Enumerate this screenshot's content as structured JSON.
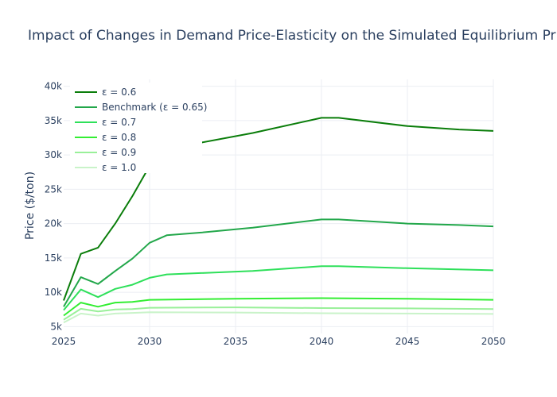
{
  "chart_data": {
    "type": "line",
    "title": "Impact of Changes in Demand Price-Elasticity on the Simulated Equilibrium Price Path",
    "xlabel": "",
    "ylabel": "Price ($/ton)",
    "xlim": [
      2025,
      2050
    ],
    "ylim": [
      4000,
      41000
    ],
    "xticks": [
      2025,
      2030,
      2035,
      2040,
      2045,
      2050
    ],
    "xtick_labels": [
      "2025",
      "2030",
      "2035",
      "2040",
      "2045",
      "2050"
    ],
    "yticks": [
      5000,
      10000,
      15000,
      20000,
      25000,
      30000,
      35000,
      40000
    ],
    "ytick_labels": [
      "5k",
      "10k",
      "15k",
      "20k",
      "25k",
      "30k",
      "35k",
      "40k"
    ],
    "grid": true,
    "legend_position": "top-left",
    "series": [
      {
        "name": "ε = 0.6",
        "color": "#0a7d0a",
        "x": [
          2025,
          2026,
          2027,
          2028,
          2029,
          2030,
          2031,
          2033,
          2036,
          2040,
          2041,
          2045,
          2048,
          2050
        ],
        "y": [
          8800,
          15600,
          16500,
          20000,
          24000,
          28400,
          30800,
          31800,
          33200,
          35400,
          35400,
          34200,
          33700,
          33500
        ]
      },
      {
        "name": "Benchmark (ε = 0.65)",
        "color": "#22a74a",
        "x": [
          2025,
          2026,
          2027,
          2028,
          2029,
          2030,
          2031,
          2033,
          2036,
          2040,
          2041,
          2045,
          2048,
          2050
        ],
        "y": [
          7900,
          12200,
          11200,
          13100,
          14900,
          17200,
          18300,
          18700,
          19400,
          20600,
          20600,
          20000,
          19800,
          19600
        ]
      },
      {
        "name": "ε = 0.7",
        "color": "#2ee05a",
        "x": [
          2025,
          2026,
          2027,
          2028,
          2029,
          2030,
          2031,
          2036,
          2040,
          2041,
          2045,
          2050
        ],
        "y": [
          7400,
          10400,
          9300,
          10500,
          11100,
          12100,
          12600,
          13100,
          13800,
          13800,
          13500,
          13200
        ]
      },
      {
        "name": "ε = 0.8",
        "color": "#33ee33",
        "x": [
          2025,
          2026,
          2027,
          2028,
          2029,
          2030,
          2035,
          2040,
          2045,
          2050
        ],
        "y": [
          6600,
          8500,
          7900,
          8500,
          8600,
          8900,
          9050,
          9150,
          9050,
          8900
        ]
      },
      {
        "name": "ε = 0.9",
        "color": "#99f099",
        "x": [
          2025,
          2026,
          2027,
          2028,
          2029,
          2030,
          2035,
          2040,
          2045,
          2050
        ],
        "y": [
          6000,
          7600,
          7200,
          7500,
          7550,
          7750,
          7800,
          7700,
          7650,
          7550
        ]
      },
      {
        "name": "ε = 1.0",
        "color": "#c9f3c9",
        "x": [
          2025,
          2026,
          2027,
          2028,
          2029,
          2030,
          2035,
          2040,
          2045,
          2050
        ],
        "y": [
          5600,
          6900,
          6600,
          6900,
          7000,
          7100,
          7050,
          6950,
          6900,
          6850
        ]
      }
    ]
  }
}
